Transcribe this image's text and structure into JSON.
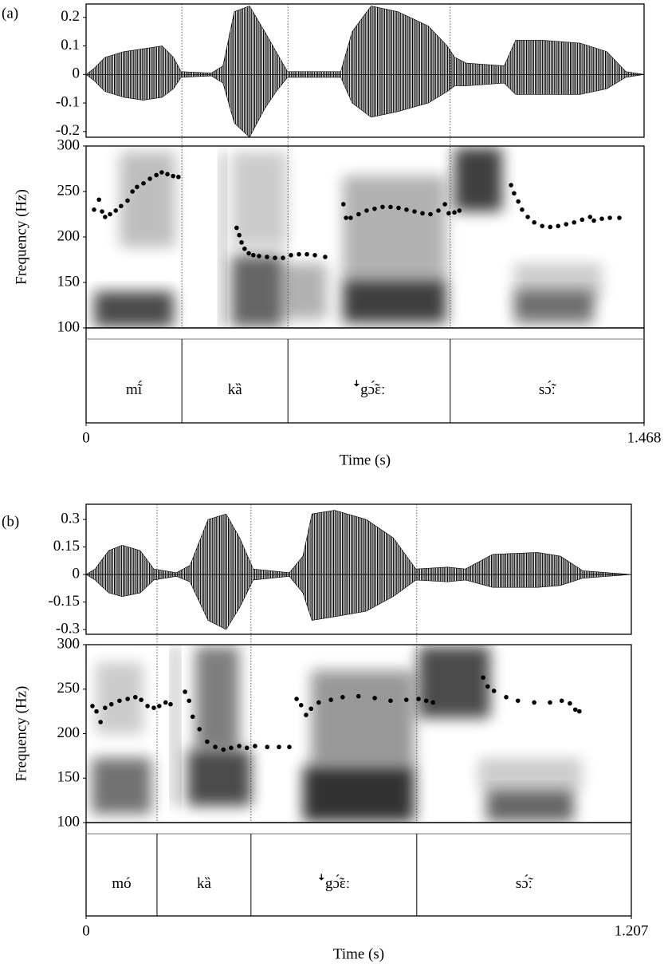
{
  "chart_data": [
    {
      "type": "praat",
      "panel_label": "(a)",
      "xlabel": "Time (s)",
      "xlim": [
        0,
        1.468
      ],
      "xticks": [
        0,
        1.468
      ],
      "waveform": {
        "ylim": [
          -0.22,
          0.247
        ],
        "yticks": [
          0.2,
          0.1,
          0,
          -0.1,
          -0.2
        ],
        "x": [
          0,
          0.02,
          0.05,
          0.1,
          0.15,
          0.2,
          0.23,
          0.25,
          0.33,
          0.36,
          0.39,
          0.43,
          0.47,
          0.5,
          0.53,
          0.67,
          0.7,
          0.75,
          0.82,
          0.9,
          0.95,
          0.97,
          1.0,
          1.1,
          1.13,
          1.2,
          1.3,
          1.37,
          1.42,
          1.468
        ],
        "upper": [
          0,
          0.02,
          0.06,
          0.08,
          0.09,
          0.1,
          0.06,
          0.01,
          0.005,
          0.03,
          0.22,
          0.24,
          0.15,
          0.08,
          0.01,
          0.01,
          0.15,
          0.24,
          0.22,
          0.17,
          0.1,
          0.06,
          0.04,
          0.03,
          0.12,
          0.12,
          0.11,
          0.08,
          0.01,
          0
        ],
        "lower": [
          0,
          -0.02,
          -0.06,
          -0.08,
          -0.09,
          -0.08,
          -0.05,
          -0.01,
          -0.005,
          -0.03,
          -0.17,
          -0.22,
          -0.12,
          -0.06,
          -0.01,
          -0.01,
          -0.1,
          -0.15,
          -0.13,
          -0.1,
          -0.06,
          -0.04,
          -0.04,
          -0.03,
          -0.07,
          -0.07,
          -0.07,
          -0.05,
          -0.01,
          0
        ]
      },
      "pitch": {
        "ylabel": "Frequency (Hz)",
        "ylim": [
          100,
          300
        ],
        "yticks": [
          100,
          150,
          200,
          250,
          300
        ],
        "x": [
          0.021,
          0.034,
          0.042,
          0.05,
          0.063,
          0.078,
          0.092,
          0.109,
          0.122,
          0.134,
          0.151,
          0.168,
          0.185,
          0.199,
          0.214,
          0.229,
          0.243,
          0.396,
          0.403,
          0.409,
          0.417,
          0.428,
          0.44,
          0.455,
          0.476,
          0.497,
          0.518,
          0.539,
          0.56,
          0.581,
          0.602,
          0.629,
          0.677,
          0.684,
          0.696,
          0.717,
          0.738,
          0.759,
          0.78,
          0.801,
          0.822,
          0.843,
          0.864,
          0.885,
          0.906,
          0.927,
          0.944,
          0.954,
          0.969,
          0.982,
          1.118,
          1.126,
          1.137,
          1.147,
          1.162,
          1.179,
          1.2,
          1.221,
          1.242,
          1.263,
          1.284,
          1.305,
          1.326,
          1.336,
          1.357,
          1.378,
          1.403
        ],
        "values": [
          230,
          241,
          228,
          222,
          225,
          229,
          234,
          240,
          250,
          255,
          259,
          264,
          268,
          271,
          269,
          267,
          266,
          210,
          202,
          194,
          187,
          182,
          180,
          179,
          178,
          177,
          177,
          180,
          181,
          181,
          180,
          178,
          236,
          221,
          221,
          225,
          229,
          231,
          233,
          233,
          232,
          230,
          228,
          226,
          225,
          229,
          236,
          226,
          227,
          229,
          257,
          248,
          239,
          230,
          222,
          216,
          212,
          211,
          212,
          214,
          216,
          219,
          222,
          218,
          220,
          221,
          221
        ]
      },
      "tier": {
        "boundaries": [
          0.252,
          0.531,
          0.958
        ],
        "labels": [
          "mĩ́",
          "kȁ",
          "ꜜgɔ̃́ɛː",
          "sɔ̃́ː"
        ]
      }
    },
    {
      "type": "praat",
      "panel_label": "(b)",
      "xlabel": "Time (s)",
      "xlim": [
        0,
        1.207
      ],
      "xticks": [
        0,
        1.207
      ],
      "waveform": {
        "ylim": [
          -0.326,
          0.383
        ],
        "yticks": [
          0.3,
          0.15,
          0,
          -0.15,
          -0.3
        ],
        "x": [
          0,
          0.02,
          0.05,
          0.08,
          0.12,
          0.15,
          0.2,
          0.23,
          0.27,
          0.31,
          0.34,
          0.37,
          0.45,
          0.48,
          0.5,
          0.55,
          0.62,
          0.68,
          0.73,
          0.8,
          0.84,
          0.9,
          1.0,
          1.05,
          1.1,
          1.207
        ],
        "upper": [
          0,
          0.03,
          0.13,
          0.16,
          0.13,
          0.03,
          0.01,
          0.05,
          0.3,
          0.33,
          0.2,
          0.03,
          0.01,
          0.1,
          0.33,
          0.35,
          0.3,
          0.2,
          0.03,
          0.04,
          0.03,
          0.11,
          0.12,
          0.1,
          0.02,
          0
        ],
        "lower": [
          0,
          -0.03,
          -0.1,
          -0.12,
          -0.1,
          -0.03,
          -0.01,
          -0.04,
          -0.25,
          -0.3,
          -0.18,
          -0.03,
          -0.01,
          -0.1,
          -0.25,
          -0.23,
          -0.2,
          -0.12,
          -0.03,
          -0.04,
          -0.03,
          -0.07,
          -0.07,
          -0.06,
          -0.02,
          0
        ]
      },
      "pitch": {
        "ylabel": "Frequency (Hz)",
        "ylim": [
          100,
          300
        ],
        "yticks": [
          100,
          150,
          200,
          250,
          300
        ],
        "x": [
          0.014,
          0.023,
          0.032,
          0.042,
          0.056,
          0.074,
          0.092,
          0.109,
          0.122,
          0.136,
          0.15,
          0.162,
          0.176,
          0.187,
          0.219,
          0.228,
          0.236,
          0.251,
          0.268,
          0.286,
          0.304,
          0.321,
          0.339,
          0.356,
          0.374,
          0.401,
          0.427,
          0.45,
          0.466,
          0.476,
          0.487,
          0.498,
          0.515,
          0.542,
          0.568,
          0.603,
          0.639,
          0.674,
          0.709,
          0.736,
          0.753,
          0.768,
          0.879,
          0.889,
          0.903,
          0.93,
          0.956,
          0.992,
          1.027,
          1.053,
          1.071,
          1.083,
          1.092
        ],
        "values": [
          231,
          225,
          213,
          229,
          233,
          237,
          239,
          241,
          238,
          231,
          229,
          231,
          235,
          233,
          247,
          237,
          219,
          205,
          191,
          185,
          182,
          184,
          186,
          184,
          186,
          185,
          185,
          185,
          239,
          232,
          221,
          228,
          235,
          238,
          241,
          242,
          240,
          237,
          238,
          239,
          237,
          235,
          263,
          253,
          248,
          241,
          237,
          235,
          235,
          237,
          234,
          227,
          225
        ]
      },
      "tier": {
        "boundaries": [
          0.157,
          0.365,
          0.732
        ],
        "labels": [
          "mó",
          "kȁ",
          "ꜜgɔ̃́ɛː",
          "sɔ̃́ː"
        ]
      }
    }
  ]
}
